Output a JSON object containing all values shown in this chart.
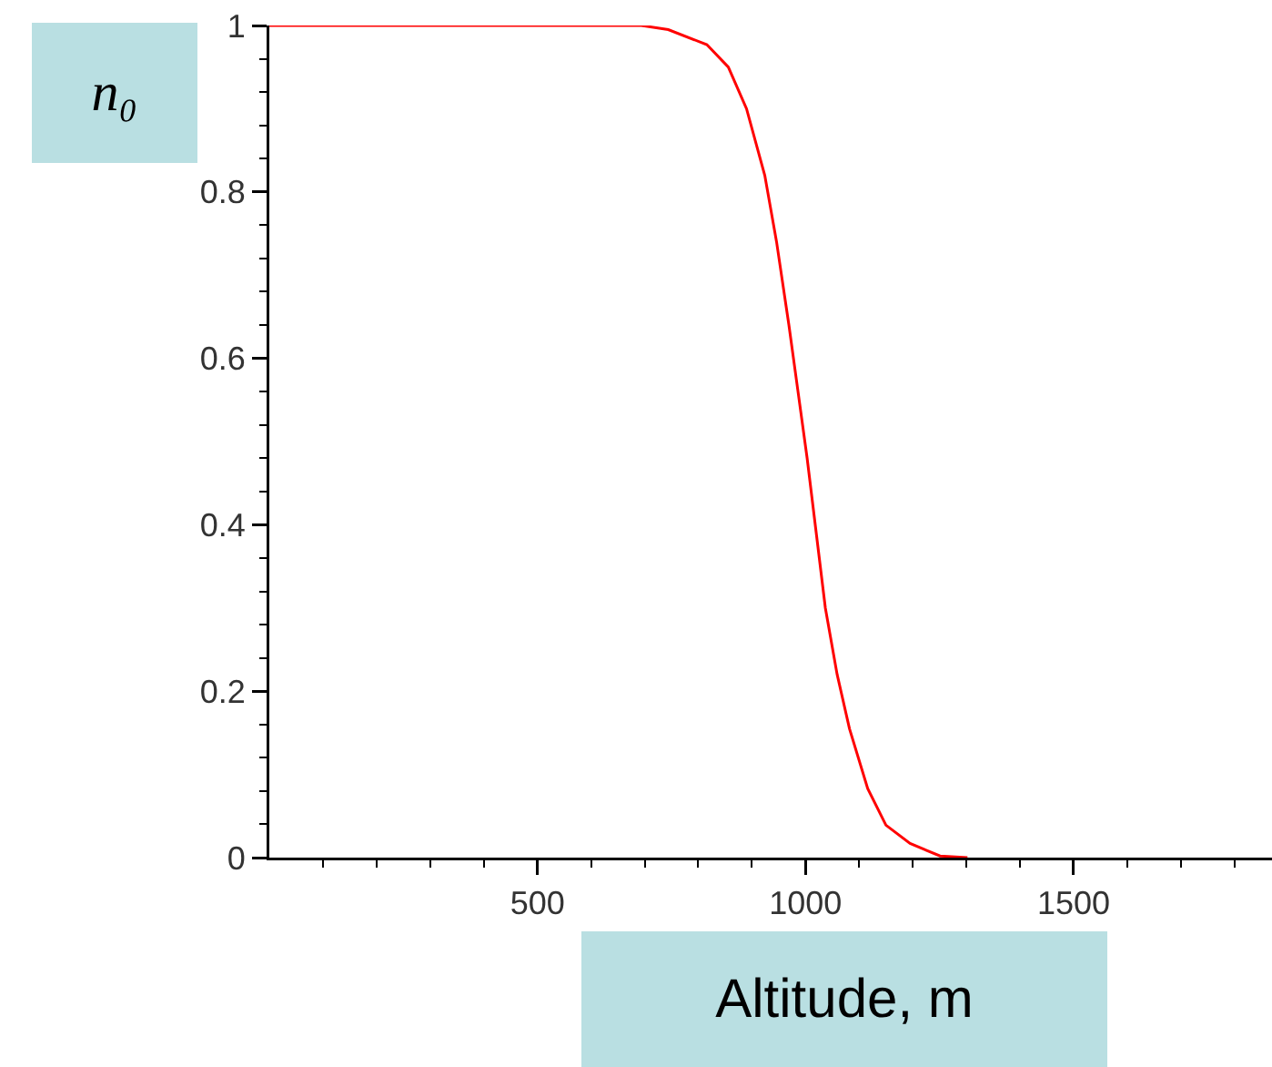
{
  "chart_data": {
    "type": "line",
    "xlabel": "Altitude, m",
    "ylabel": "n₀",
    "x": [
      0,
      694,
      744,
      816,
      856,
      890,
      924,
      946,
      969,
      986,
      1003,
      1020,
      1037,
      1059,
      1082,
      1116,
      1150,
      1195,
      1251,
      1302
    ],
    "series": [
      {
        "color": "#ff0000",
        "values": [
          1,
          1,
          0.995,
          0.977,
          0.95,
          0.9,
          0.82,
          0.74,
          0.64,
          0.56,
          0.48,
          0.39,
          0.3,
          0.22,
          0.155,
          0.083,
          0.039,
          0.017,
          0.002,
          0
        ]
      }
    ],
    "xlim": [
      0,
      1870
    ],
    "ylim": [
      0,
      1
    ],
    "xticks": [
      {
        "value": 100,
        "label": null
      },
      {
        "value": 200,
        "label": null
      },
      {
        "value": 300,
        "label": null
      },
      {
        "value": 400,
        "label": null
      },
      500,
      {
        "value": 600,
        "label": null
      },
      {
        "value": 700,
        "label": null
      },
      {
        "value": 800,
        "label": null
      },
      {
        "value": 900,
        "label": null
      },
      1000,
      {
        "value": 1100,
        "label": null
      },
      {
        "value": 1200,
        "label": null
      },
      {
        "value": 1300,
        "label": null
      },
      {
        "value": 1400,
        "label": null
      },
      1500,
      {
        "value": 1600,
        "label": null
      },
      {
        "value": 1700,
        "label": null
      },
      {
        "value": 1800,
        "label": null
      }
    ],
    "yticks": [
      0,
      {
        "value": 0.04,
        "label": null
      },
      {
        "value": 0.08,
        "label": null
      },
      {
        "value": 0.12,
        "label": null
      },
      {
        "value": 0.16,
        "label": null
      },
      0.2,
      {
        "value": 0.24,
        "label": null
      },
      {
        "value": 0.28,
        "label": null
      },
      {
        "value": 0.32,
        "label": null
      },
      {
        "value": 0.36,
        "label": null
      },
      0.4,
      {
        "value": 0.44,
        "label": null
      },
      {
        "value": 0.48,
        "label": null
      },
      {
        "value": 0.52,
        "label": null
      },
      {
        "value": 0.56,
        "label": null
      },
      0.6,
      {
        "value": 0.64,
        "label": null
      },
      {
        "value": 0.68,
        "label": null
      },
      {
        "value": 0.72,
        "label": null
      },
      {
        "value": 0.76,
        "label": null
      },
      0.8,
      {
        "value": 0.84,
        "label": null
      },
      {
        "value": 0.88,
        "label": null
      },
      {
        "value": 0.92,
        "label": null
      },
      {
        "value": 0.96,
        "label": null
      },
      1
    ]
  }
}
